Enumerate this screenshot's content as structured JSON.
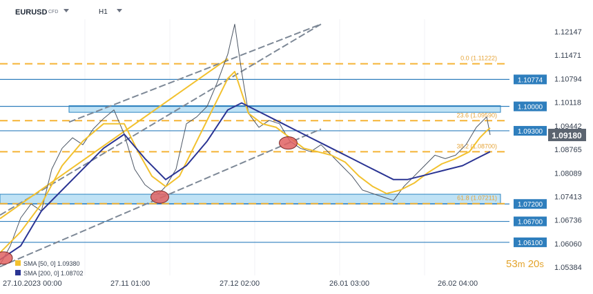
{
  "toolbar": {
    "symbol": "EURUSD",
    "instrument_type": "CFD",
    "timeframe": "H1"
  },
  "timer": {
    "minutes": "53",
    "m_unit": "m",
    "seconds": "20",
    "s_unit": "s"
  },
  "chart_data": {
    "type": "line",
    "price_axis": {
      "ticks": [
        "1.12147",
        "1.11471",
        "1.10794",
        "1.10118",
        "1.09442",
        "1.08765",
        "1.08089",
        "1.07413",
        "1.06736",
        "1.06060",
        "1.05384"
      ],
      "range": [
        1.0515,
        1.125
      ]
    },
    "time_axis": {
      "ticks": [
        "27.10.2023  00:00",
        "27.11  01:00",
        "27.12  02:00",
        "26.01  03:00",
        "26.02  04:00"
      ],
      "range_bars": [
        0,
        172
      ]
    },
    "current_price": {
      "value": 1.0918,
      "label": "1.09180"
    },
    "horizontal_levels": [
      {
        "value": 1.10774,
        "label": "1.10774"
      },
      {
        "value": 1.1,
        "label": "1.10000"
      },
      {
        "value": 1.093,
        "label": "1.09300"
      },
      {
        "value": 1.072,
        "label": "1.07200"
      },
      {
        "value": 1.067,
        "label": "1.06700"
      },
      {
        "value": 1.061,
        "label": "1.06100"
      }
    ],
    "fibonacci": [
      {
        "value": 1.11222,
        "label": "0.0 (1.11222)"
      },
      {
        "value": 1.0959,
        "label": "23.6 (1.09590)"
      },
      {
        "value": 1.087,
        "label": "38.2 (1.08700)"
      },
      {
        "value": 1.07211,
        "label": "61.8 (1.07211)"
      }
    ],
    "zones": [
      {
        "from": 1.0983,
        "to": 1.1002,
        "x_from": 20,
        "x_to": 145
      },
      {
        "from": 1.0721,
        "to": 1.0748,
        "x_from": 0,
        "x_to": 145
      }
    ],
    "trend_lines": [
      {
        "from": [
          0,
          1.0688
        ],
        "to": [
          93,
          1.1236
        ]
      },
      {
        "from": [
          20,
          1.0955
        ],
        "to": [
          93,
          1.1236
        ]
      },
      {
        "from": [
          0,
          1.054
        ],
        "to": [
          93,
          1.0935
        ]
      },
      {
        "from": [
          0,
          1.0678
        ],
        "to": [
          66,
          1.1137
        ]
      }
    ],
    "markers": [
      {
        "x": 46.3,
        "y": 1.074,
        "color": "#e06161"
      },
      {
        "x": 83.5,
        "y": 1.0895,
        "color": "#e06161"
      },
      {
        "x": 1,
        "y": 1.0565,
        "color": "#e06161"
      }
    ],
    "indicators": [
      {
        "label": "SMA [50, 0]",
        "value": "1.09380",
        "color": "#f2c12e"
      },
      {
        "label": "SMA [200, 0]",
        "value": "1.08702",
        "color": "#2a3493"
      }
    ],
    "series": [
      {
        "name": "EURUSD",
        "x": [
          0,
          3,
          6,
          9,
          12,
          15,
          18,
          21,
          24,
          27,
          30,
          33,
          36,
          39,
          42,
          44,
          46,
          48,
          51,
          54,
          57,
          60,
          63,
          66,
          68,
          70,
          72,
          75,
          78,
          81,
          84,
          87,
          90,
          93,
          96,
          99,
          102,
          105,
          108,
          111,
          114,
          117,
          120,
          123,
          126,
          129,
          132,
          135,
          138,
          141,
          142
        ],
        "y": [
          1.0545,
          1.06,
          1.068,
          1.072,
          1.07,
          1.082,
          1.088,
          1.091,
          1.089,
          1.0935,
          1.0965,
          1.099,
          1.092,
          1.082,
          1.0775,
          1.076,
          1.075,
          1.077,
          1.082,
          1.095,
          1.097,
          1.1,
          1.107,
          1.115,
          1.1236,
          1.11,
          1.098,
          1.094,
          1.096,
          1.095,
          1.09,
          1.088,
          1.087,
          1.089,
          1.086,
          1.083,
          1.08,
          1.076,
          1.075,
          1.074,
          1.073,
          1.077,
          1.08,
          1.083,
          1.086,
          1.085,
          1.086,
          1.089,
          1.094,
          1.097,
          1.0918
        ]
      },
      {
        "name": "SMA [50, 0]",
        "x": [
          0,
          6,
          12,
          18,
          24,
          30,
          36,
          40,
          44,
          48,
          52,
          56,
          60,
          64,
          66,
          68,
          70,
          72,
          76,
          80,
          84,
          88,
          92,
          96,
          100,
          104,
          108,
          112,
          116,
          120,
          124,
          128,
          132,
          136,
          139,
          141,
          142
        ],
        "y": [
          1.058,
          1.064,
          1.072,
          1.083,
          1.09,
          1.095,
          1.095,
          1.087,
          1.08,
          1.077,
          1.08,
          1.088,
          1.096,
          1.104,
          1.108,
          1.11,
          1.104,
          1.098,
          1.095,
          1.094,
          1.091,
          1.088,
          1.087,
          1.086,
          1.084,
          1.08,
          1.077,
          1.075,
          1.076,
          1.078,
          1.081,
          1.0835,
          1.085,
          1.087,
          1.091,
          1.093,
          1.0938
        ]
      },
      {
        "name": "SMA [200, 0]",
        "x": [
          0,
          6,
          12,
          18,
          24,
          30,
          36,
          42,
          48,
          54,
          60,
          66,
          70,
          74,
          78,
          82,
          86,
          90,
          94,
          98,
          102,
          106,
          110,
          114,
          118,
          122,
          126,
          130,
          134,
          138,
          142
        ],
        "y": [
          1.056,
          1.06,
          1.07,
          1.076,
          1.082,
          1.088,
          1.092,
          1.085,
          1.079,
          1.083,
          1.09,
          1.099,
          1.101,
          1.099,
          1.097,
          1.095,
          1.093,
          1.091,
          1.089,
          1.087,
          1.085,
          1.083,
          1.081,
          1.079,
          1.079,
          1.08,
          1.081,
          1.082,
          1.083,
          1.085,
          1.087
        ]
      }
    ]
  }
}
